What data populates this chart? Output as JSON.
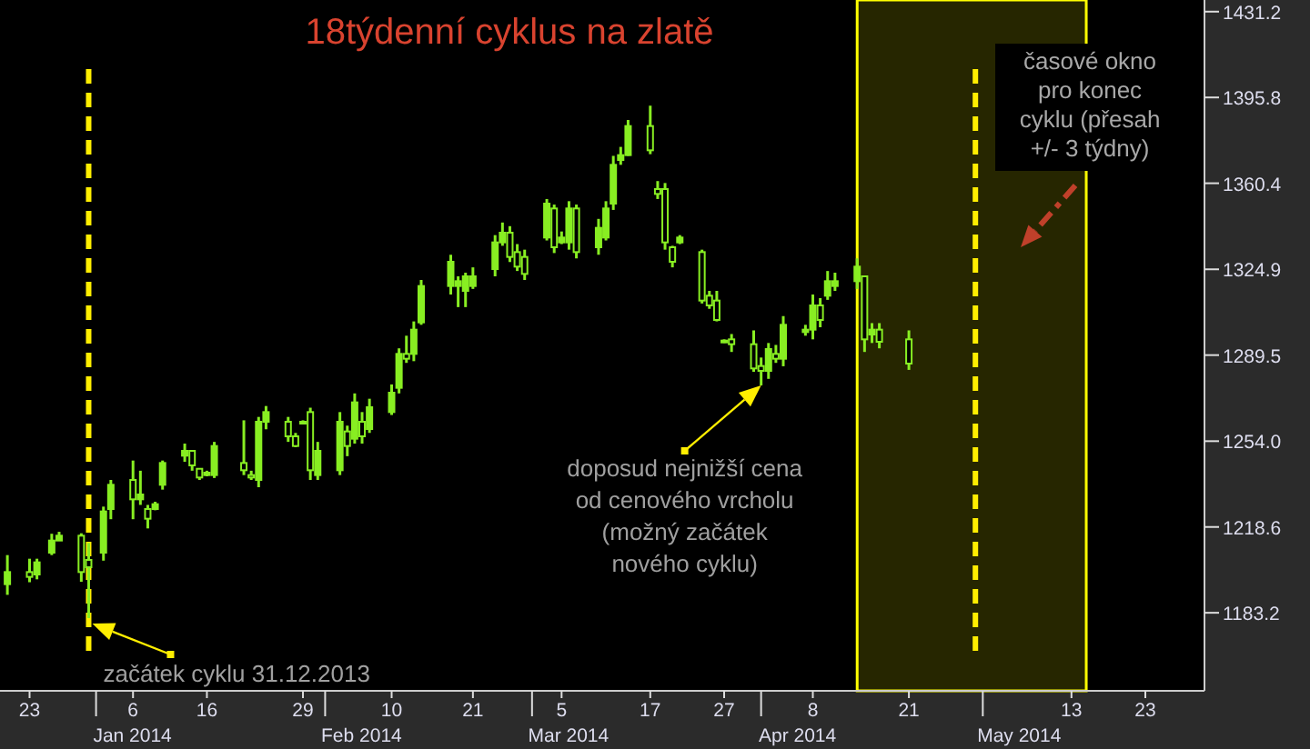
{
  "chart_data": {
    "type": "candlestick",
    "title": "18týdenní cyklus na zlatě",
    "color": "#88ee22",
    "x": [
      "2013-12-20",
      "2013-12-23",
      "2013-12-24",
      "2013-12-26",
      "2013-12-27",
      "2013-12-30",
      "2013-12-31",
      "2014-01-02",
      "2014-01-03",
      "2014-01-06",
      "2014-01-07",
      "2014-01-08",
      "2014-01-09",
      "2014-01-10",
      "2014-01-13",
      "2014-01-14",
      "2014-01-15",
      "2014-01-16",
      "2014-01-17",
      "2014-01-21",
      "2014-01-22",
      "2014-01-23",
      "2014-01-24",
      "2014-01-27",
      "2014-01-28",
      "2014-01-29",
      "2014-01-30",
      "2014-01-31",
      "2014-02-03",
      "2014-02-04",
      "2014-02-05",
      "2014-02-06",
      "2014-02-07",
      "2014-02-10",
      "2014-02-11",
      "2014-02-12",
      "2014-02-13",
      "2014-02-14",
      "2014-02-18",
      "2014-02-19",
      "2014-02-20",
      "2014-02-21",
      "2014-02-24",
      "2014-02-25",
      "2014-02-26",
      "2014-02-27",
      "2014-02-28",
      "2014-03-03",
      "2014-03-04",
      "2014-03-05",
      "2014-03-06",
      "2014-03-07",
      "2014-03-10",
      "2014-03-11",
      "2014-03-12",
      "2014-03-13",
      "2014-03-14",
      "2014-03-17",
      "2014-03-18",
      "2014-03-19",
      "2014-03-20",
      "2014-03-21",
      "2014-03-24",
      "2014-03-25",
      "2014-03-26",
      "2014-03-27",
      "2014-03-28",
      "2014-03-31",
      "2014-04-01",
      "2014-04-02",
      "2014-04-03",
      "2014-04-04",
      "2014-04-07",
      "2014-04-08",
      "2014-04-09",
      "2014-04-10",
      "2014-04-11",
      "2014-04-14",
      "2014-04-15",
      "2014-04-16",
      "2014-04-17",
      "2014-04-21"
    ],
    "ohlc": [
      [
        1195,
        1207,
        1190.6,
        1200
      ],
      [
        1200,
        1205.5,
        1195.8,
        1198
      ],
      [
        1199,
        1205.5,
        1197,
        1204
      ],
      [
        1208,
        1215.8,
        1207,
        1213
      ],
      [
        1213,
        1216.6,
        1212.9,
        1215
      ],
      [
        1215,
        1216,
        1196,
        1200
      ],
      [
        1205,
        1212,
        1181,
        1202
      ],
      [
        1208,
        1227,
        1204.7,
        1225
      ],
      [
        1226,
        1238,
        1221.8,
        1236
      ],
      [
        1238,
        1246,
        1221.8,
        1230
      ],
      [
        1230,
        1241.8,
        1227.7,
        1232
      ],
      [
        1226,
        1227.7,
        1218,
        1222
      ],
      [
        1226,
        1229,
        1225.5,
        1228
      ],
      [
        1236,
        1246,
        1234,
        1245
      ],
      [
        1248,
        1253,
        1245.5,
        1250
      ],
      [
        1250,
        1250,
        1241.8,
        1244
      ],
      [
        1242.6,
        1242.6,
        1238,
        1239
      ],
      [
        1240,
        1241.8,
        1239.5,
        1241
      ],
      [
        1240,
        1253.7,
        1238.8,
        1252
      ],
      [
        1245,
        1262.6,
        1240,
        1242
      ],
      [
        1240,
        1241.8,
        1238,
        1239
      ],
      [
        1238,
        1264,
        1235,
        1262
      ],
      [
        1262,
        1268.5,
        1258.9,
        1266
      ],
      [
        1262,
        1264,
        1253.7,
        1256
      ],
      [
        1256,
        1257.4,
        1251.5,
        1252
      ],
      [
        1262,
        1262.6,
        1261,
        1262
      ],
      [
        1266,
        1267.8,
        1238,
        1242
      ],
      [
        1240,
        1253.7,
        1238,
        1250
      ],
      [
        1242,
        1266,
        1240,
        1262
      ],
      [
        1258,
        1260.4,
        1247.8,
        1252
      ],
      [
        1255,
        1273.7,
        1253,
        1270
      ],
      [
        1262,
        1266,
        1253,
        1256
      ],
      [
        1259,
        1271.5,
        1257.4,
        1268
      ],
      [
        1266,
        1277.4,
        1264.8,
        1274
      ],
      [
        1276,
        1292.3,
        1273.7,
        1290
      ],
      [
        1290,
        1297.5,
        1286.3,
        1288
      ],
      [
        1290,
        1303.4,
        1287,
        1300
      ],
      [
        1303,
        1320.5,
        1302,
        1318
      ],
      [
        1318,
        1330.9,
        1314.5,
        1328
      ],
      [
        1318,
        1322,
        1309.3,
        1320
      ],
      [
        1316,
        1323.5,
        1309.3,
        1322
      ],
      [
        1318,
        1325.7,
        1316.8,
        1322
      ],
      [
        1325,
        1339,
        1322,
        1336
      ],
      [
        1336,
        1344.2,
        1334.6,
        1340
      ],
      [
        1340,
        1342.7,
        1327.9,
        1330
      ],
      [
        1332,
        1335.3,
        1324.2,
        1326
      ],
      [
        1330,
        1333,
        1320.5,
        1323
      ],
      [
        1338,
        1353.9,
        1336.8,
        1352
      ],
      [
        1350,
        1351.6,
        1331.6,
        1334
      ],
      [
        1336,
        1340.5,
        1335.3,
        1338
      ],
      [
        1336,
        1353,
        1333,
        1350
      ],
      [
        1350,
        1351.6,
        1329.4,
        1332
      ],
      [
        1334,
        1345.7,
        1330.9,
        1342
      ],
      [
        1338,
        1353,
        1336.8,
        1350
      ],
      [
        1352,
        1371.7,
        1349.4,
        1368
      ],
      [
        1370,
        1375.4,
        1368,
        1372
      ],
      [
        1372,
        1386.5,
        1371.7,
        1384
      ],
      [
        1384,
        1392.4,
        1372.4,
        1374
      ],
      [
        1358,
        1361.3,
        1353.9,
        1356
      ],
      [
        1358,
        1360.5,
        1333,
        1336
      ],
      [
        1334,
        1334.6,
        1325.7,
        1328
      ],
      [
        1336,
        1339,
        1335.3,
        1338
      ],
      [
        1332,
        1333,
        1310.8,
        1312
      ],
      [
        1314,
        1316,
        1308.6,
        1310
      ],
      [
        1312,
        1316,
        1303.4,
        1304
      ],
      [
        1295,
        1296,
        1294.5,
        1295.5
      ],
      [
        1296,
        1298.2,
        1290.8,
        1294
      ],
      [
        1294,
        1299.7,
        1282.6,
        1284
      ],
      [
        1285,
        1288.5,
        1277,
        1283
      ],
      [
        1283,
        1294.5,
        1279.7,
        1292
      ],
      [
        1290,
        1293.7,
        1286.3,
        1288
      ],
      [
        1288,
        1305.6,
        1284.9,
        1302
      ],
      [
        1299,
        1302,
        1297.5,
        1300
      ],
      [
        1300,
        1314.5,
        1296,
        1310
      ],
      [
        1310,
        1313,
        1301,
        1304
      ],
      [
        1314,
        1324.2,
        1312.3,
        1320
      ],
      [
        1318,
        1323.5,
        1316,
        1320
      ],
      [
        1320,
        1329.4,
        1316.8,
        1326
      ],
      [
        1322,
        1322,
        1290.8,
        1296
      ],
      [
        1298,
        1302.7,
        1294.5,
        1300
      ],
      [
        1300,
        1302.7,
        1292.3,
        1295
      ],
      [
        1296,
        1299.7,
        1283.4,
        1286
      ]
    ],
    "xlim": [
      "2013-12-19",
      "2014-05-31"
    ],
    "xticks": [
      {
        "value": "2013-12-23",
        "label": "23"
      },
      {
        "value": "2014-01-06",
        "label": "6"
      },
      {
        "value": "2014-01-16",
        "label": "16"
      },
      {
        "value": "2014-01-29",
        "label": "29"
      },
      {
        "value": "2014-02-10",
        "label": "10"
      },
      {
        "value": "2014-02-21",
        "label": "21"
      },
      {
        "value": "2014-03-05",
        "label": "5"
      },
      {
        "value": "2014-03-17",
        "label": "17"
      },
      {
        "value": "2014-03-27",
        "label": "27"
      },
      {
        "value": "2014-04-08",
        "label": "8"
      },
      {
        "value": "2014-04-21",
        "label": "21"
      },
      {
        "value": "2014-05-13",
        "label": "13"
      },
      {
        "value": "2014-05-23",
        "label": "23"
      },
      {
        "value": "2014-01-01",
        "label": null
      },
      {
        "value": "2014-02-01",
        "label": null
      },
      {
        "value": "2014-03-01",
        "label": null
      },
      {
        "value": "2014-04-01",
        "label": null
      },
      {
        "value": "2014-05-01",
        "label": null
      }
    ],
    "ylim": [
      1151,
      1436
    ],
    "yticks": [
      {
        "value": 1183.2,
        "label": "1183.2"
      },
      {
        "value": 1218.6,
        "label": "1218.6"
      },
      {
        "value": 1254,
        "label": "1254.0"
      },
      {
        "value": 1289.5,
        "label": "1289.5"
      },
      {
        "value": 1324.9,
        "label": "1324.9"
      },
      {
        "value": 1360.4,
        "label": "1360.4"
      },
      {
        "value": 1395.8,
        "label": "1395.8"
      },
      {
        "value": 1431.2,
        "label": "1431.2"
      }
    ],
    "ref_lines": [
      {
        "axis": "x",
        "value": "2013-12-31",
        "label": "začátek cyklu 31.12.2013",
        "color": "#ffee00",
        "line_style": "dashed"
      },
      {
        "axis": "x",
        "value": "2014-04-30",
        "color": "#ffee00",
        "line_style": "dashed"
      }
    ],
    "bands": [
      {
        "axis": "x",
        "from": "2014-04-14",
        "to": "2014-05-15",
        "label": "časové okno\npro konec\ncyklu (přesah\n+/- 3 týdny)",
        "color": "#ffff00"
      }
    ],
    "annotations": [
      {
        "text": "doposud nejnižší cena\nod cenového vrcholu\n(možný začátek\nnového cyklu)",
        "x": "2014-04-01",
        "y": 1277
      },
      "Jan 2014",
      "Feb 2014",
      "Mar 2014",
      "Apr 2014",
      "May 2014"
    ],
    "grid": false,
    "legend": false
  }
}
